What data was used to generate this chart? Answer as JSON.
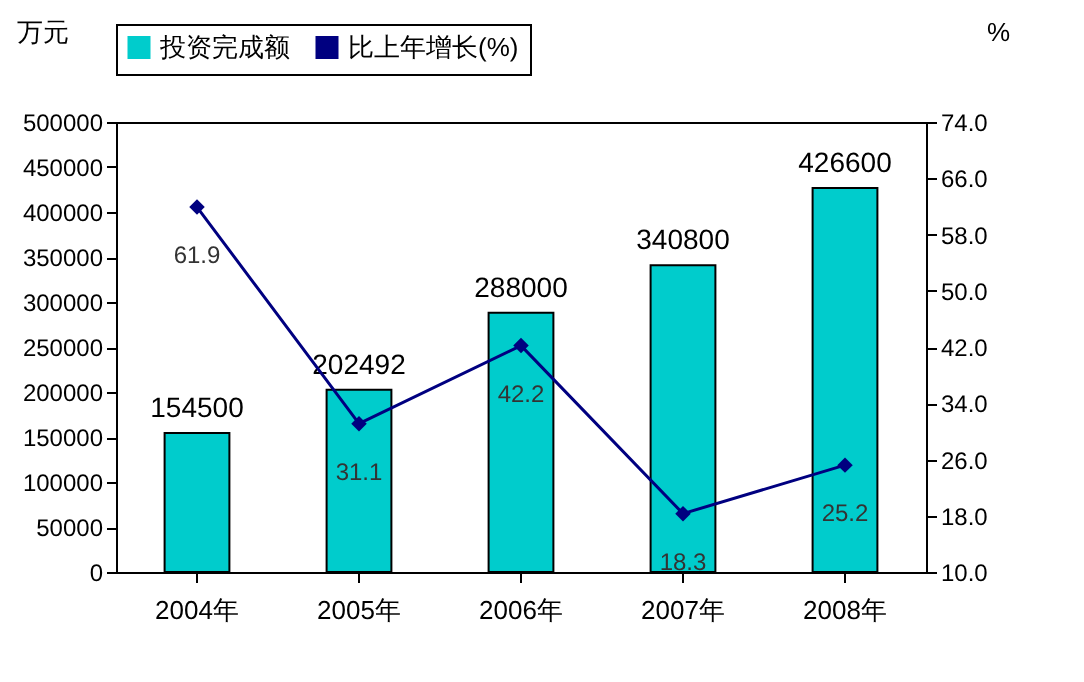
{
  "chart_data": {
    "type": "bar",
    "ylabel": "万元",
    "y2label": "%",
    "categories": [
      "2004年",
      "2005年",
      "2006年",
      "2007年",
      "2008年"
    ],
    "series": [
      {
        "name": "投资完成额",
        "type": "bar",
        "color": "#00cccc",
        "values": [
          154500,
          202492,
          288000,
          340800,
          426600
        ]
      },
      {
        "name": "比上年增长(%)",
        "type": "line",
        "axis": "y2",
        "color": "#000080",
        "values": [
          61.9,
          31.1,
          42.2,
          18.3,
          25.2
        ]
      }
    ],
    "ylim": [
      0,
      500000
    ],
    "yticks": [
      0,
      50000,
      100000,
      150000,
      200000,
      250000,
      300000,
      350000,
      400000,
      450000,
      500000
    ],
    "y2lim": [
      10,
      74
    ],
    "y2ticks": [
      {
        "value": 10,
        "label": "10.0"
      },
      {
        "value": 18,
        "label": "18.0"
      },
      {
        "value": 26,
        "label": "26.0"
      },
      {
        "value": 34,
        "label": "34.0"
      },
      {
        "value": 42,
        "label": "42.0"
      },
      {
        "value": 50,
        "label": "50.0"
      },
      {
        "value": 58,
        "label": "58.0"
      },
      {
        "value": 66,
        "label": "66.0"
      },
      {
        "value": 74,
        "label": "74.0"
      }
    ],
    "data_labels": true,
    "legend": "top",
    "marker": "diamond"
  }
}
